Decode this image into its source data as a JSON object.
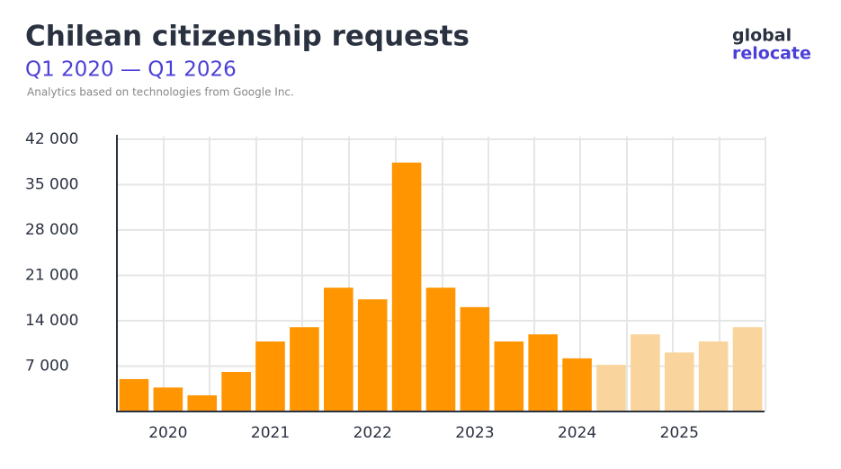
{
  "chart_data": {
    "type": "bar",
    "title": "Chilean citizenship requests",
    "subtitle": "Q1 2020 — Q1 2026",
    "note": "Analytics based on technologies from Google Inc.",
    "logo": {
      "line1": "global",
      "line2": "relocate"
    },
    "categories": [
      null,
      "2020",
      null,
      null,
      "2021",
      null,
      null,
      "2022",
      null,
      null,
      "2023",
      null,
      null,
      "2024",
      null,
      null,
      "2025",
      null,
      null
    ],
    "values": [
      5000,
      3700,
      2500,
      6100,
      10800,
      13000,
      19100,
      17300,
      38400,
      19100,
      16100,
      10800,
      11900,
      8200,
      7200,
      11900,
      9100,
      10800,
      13000
    ],
    "colors": [
      "#ff9500",
      "#ff9500",
      "#ff9500",
      "#ff9500",
      "#ff9500",
      "#ff9500",
      "#ff9500",
      "#ff9500",
      "#ff9500",
      "#ff9500",
      "#ff9500",
      "#ff9500",
      "#ff9500",
      "#ff9500",
      "#f9d49c",
      "#f9d49c",
      "#f9d49c",
      "#f9d49c",
      "#f9d49c"
    ],
    "ylim": [
      0,
      42000
    ],
    "yticks": [
      {
        "value": 7000,
        "label": "7 000"
      },
      {
        "value": 14000,
        "label": "14 000"
      },
      {
        "value": 21000,
        "label": "21 000"
      },
      {
        "value": 28000,
        "label": "28 000"
      },
      {
        "value": 35000,
        "label": "35 000"
      },
      {
        "value": 42000,
        "label": "42 000"
      }
    ],
    "grid": true
  }
}
